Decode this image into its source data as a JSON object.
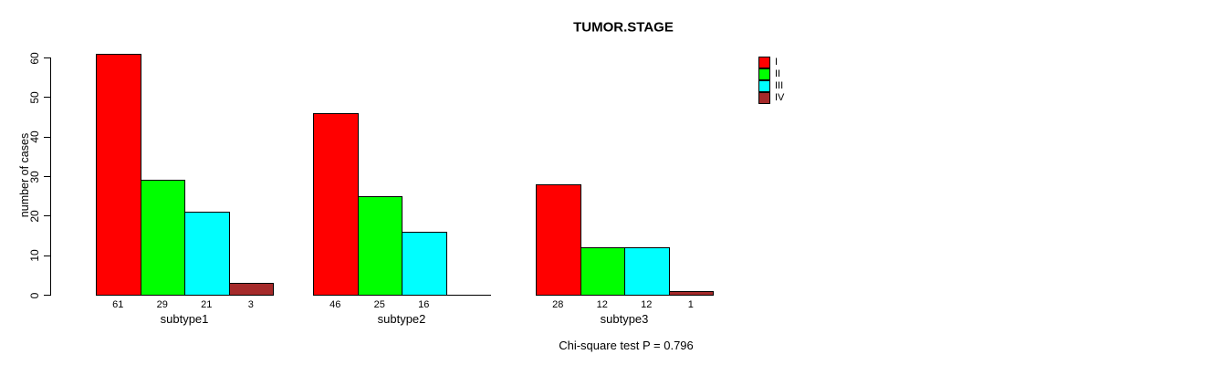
{
  "title": "TUMOR.STAGE",
  "footer": "Chi-square test P = 0.796",
  "chart_data": {
    "type": "bar",
    "title": "TUMOR.STAGE",
    "xlabel": "",
    "ylabel": "number of cases",
    "ylim": [
      0,
      60
    ],
    "yticks": [
      "0",
      "10",
      "20",
      "30",
      "40",
      "50",
      "60"
    ],
    "grid": false,
    "legend_position": "top-right",
    "categories": [
      "subtype1",
      "subtype2",
      "subtype3"
    ],
    "series": [
      {
        "name": "I",
        "color": "#ff0000",
        "values": [
          61,
          46,
          28
        ]
      },
      {
        "name": "II",
        "color": "#00ff00",
        "values": [
          29,
          25,
          12
        ]
      },
      {
        "name": "III",
        "color": "#00ffff",
        "values": [
          21,
          16,
          12
        ]
      },
      {
        "name": "IV",
        "color": "#a52a2a",
        "values": [
          3,
          0,
          1
        ]
      }
    ],
    "bar_labels": [
      [
        "61",
        "29",
        "21",
        "3"
      ],
      [
        "46",
        "25",
        "16",
        ""
      ],
      [
        "28",
        "12",
        "12",
        "1"
      ]
    ],
    "annotation": "Chi-square test P = 0.796",
    "colors": {
      "bar_border": "#000000",
      "background": "#ffffff"
    }
  }
}
